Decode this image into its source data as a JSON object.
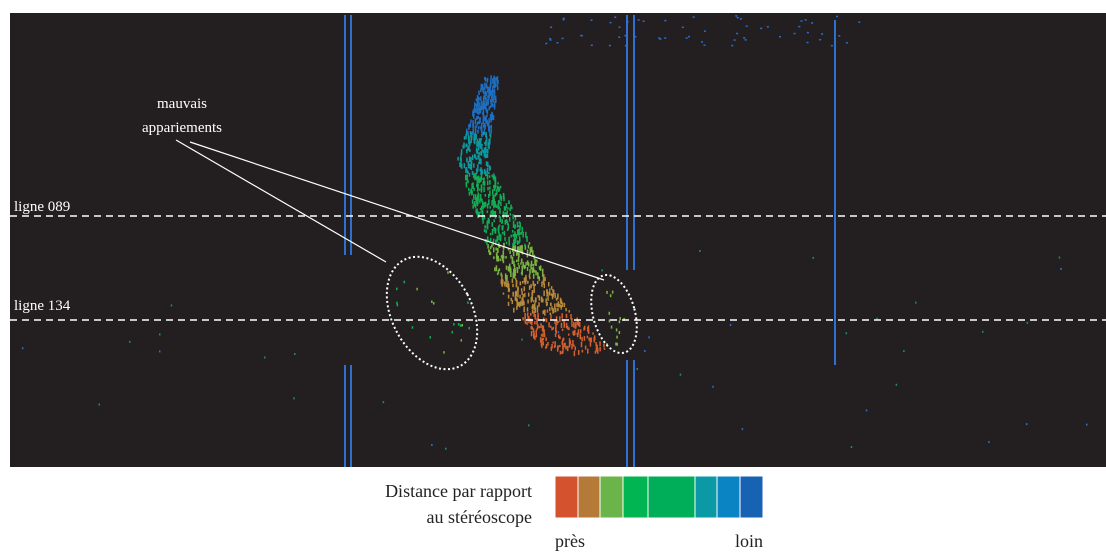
{
  "annotation": {
    "lines": [
      "mauvais",
      "appariements"
    ]
  },
  "scan_lines": [
    {
      "label": "ligne 089"
    },
    {
      "label": "ligne 134"
    }
  ],
  "legend": {
    "title_lines": [
      "Distance par rapport",
      "au stéréoscope"
    ],
    "near": "près",
    "far": "loin"
  }
}
